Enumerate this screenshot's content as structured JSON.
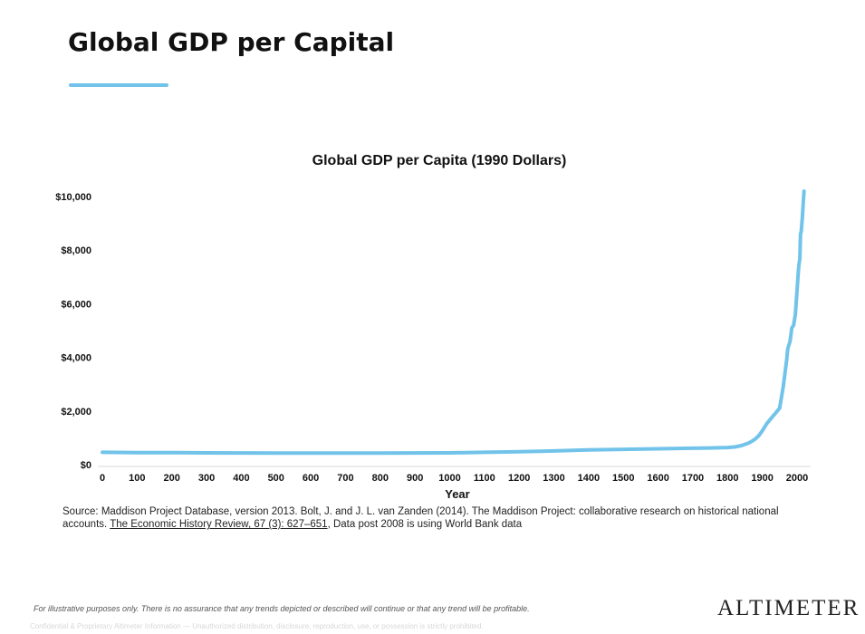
{
  "slide": {
    "title": "Global GDP per Capital"
  },
  "colors": {
    "accent": "#72c3ea",
    "line": "#72c3ea",
    "text": "#111111"
  },
  "chart_data": {
    "type": "line",
    "title": "Global GDP per Capita (1990 Dollars)",
    "xlabel": "Year",
    "ylabel": "",
    "xlim": [
      0,
      2020
    ],
    "ylim": [
      0,
      10000
    ],
    "x_ticks": [
      0,
      100,
      200,
      300,
      400,
      500,
      600,
      700,
      800,
      900,
      1000,
      1100,
      1200,
      1300,
      1400,
      1500,
      1600,
      1700,
      1800,
      1900,
      2000
    ],
    "y_ticks": [
      0,
      2000,
      4000,
      6000,
      8000,
      10000
    ],
    "y_tick_labels": [
      "$0",
      "$2,000",
      "$4,000",
      "$6,000",
      "$8,000",
      "$10,000"
    ],
    "grid": false,
    "series": [
      {
        "x": [
          0,
          100,
          200,
          300,
          400,
          500,
          600,
          700,
          800,
          900,
          1000,
          1100,
          1200,
          1300,
          1400,
          1500,
          1600,
          1700,
          1750,
          1800,
          1820,
          1840,
          1860,
          1870,
          1880,
          1890,
          1900,
          1913,
          1930,
          1940,
          1950,
          1955,
          1960,
          1965,
          1970,
          1973,
          1975,
          1980,
          1985,
          1990,
          1995,
          2000,
          2003,
          2005,
          2008,
          2010,
          2012,
          2015,
          2018,
          2020
        ],
        "y": [
          460,
          450,
          445,
          440,
          435,
          430,
          430,
          430,
          430,
          435,
          440,
          460,
          480,
          510,
          550,
          570,
          590,
          610,
          620,
          640,
          660,
          710,
          800,
          870,
          960,
          1080,
          1260,
          1530,
          1800,
          1950,
          2110,
          2500,
          2900,
          3400,
          3900,
          4300,
          4400,
          4600,
          5100,
          5200,
          5600,
          6500,
          7100,
          7400,
          7700,
          8600,
          8700,
          9200,
          9800,
          10200
        ]
      }
    ]
  },
  "source": {
    "text_before": "Source: Maddison Project Database, version 2013. Bolt, J. and J. L. van Zanden (2014). The Maddison Project: collaborative research on historical national accounts. ",
    "link_text": "The Economic History Review, 67 (3): 627–651",
    "text_after": ",  Data post 2008 is using World Bank data"
  },
  "footer": {
    "disclaimer": "For illustrative purposes only. There is no assurance that any trends depicted or described will continue or that any trend will be profitable.",
    "confidential": "Confidential & Proprietary Altimeter Information — Unauthorized distribution, disclosure, reproduction, use, or possession is strictly prohibited.",
    "logo": "ALTIMETER"
  }
}
